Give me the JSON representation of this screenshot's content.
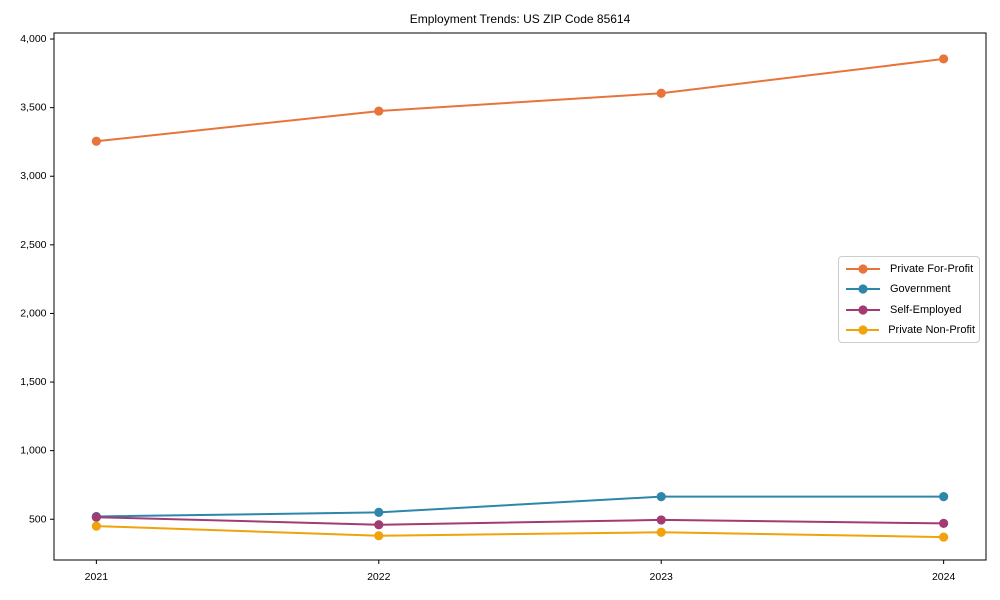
{
  "chart_data": {
    "type": "line",
    "title": "Employment Trends: US ZIP Code 85614",
    "x": [
      2021,
      2022,
      2023,
      2024
    ],
    "series": [
      {
        "name": "Private For-Profit",
        "color": "#E8743B",
        "values": [
          3255,
          3475,
          3605,
          3855
        ]
      },
      {
        "name": "Government",
        "color": "#2E86AB",
        "values": [
          520,
          550,
          665,
          665
        ]
      },
      {
        "name": "Self-Employed",
        "color": "#A23B72",
        "values": [
          515,
          460,
          495,
          470
        ]
      },
      {
        "name": "Private Non-Profit",
        "color": "#F0A30A",
        "values": [
          450,
          380,
          405,
          370
        ]
      }
    ],
    "xlabel": "",
    "ylabel": "",
    "xlim": [
      2020.85,
      2024.15
    ],
    "ylim": [
      203,
      4044
    ],
    "xticks": [
      2021,
      2022,
      2023,
      2024
    ],
    "xtick_labels": [
      "2021",
      "2022",
      "2023",
      "2024"
    ],
    "yticks": [
      500,
      1000,
      1500,
      2000,
      2500,
      3000,
      3500,
      4000
    ],
    "ytick_labels": [
      "500",
      "1,000",
      "1,500",
      "2,000",
      "2,500",
      "3,000",
      "3,500",
      "4,000"
    ],
    "grid": false,
    "legend_position": "center right",
    "marker": "o",
    "line_width": 2,
    "marker_radius": 4.6,
    "axis_color": "#000000",
    "background_color": "#ffffff"
  }
}
